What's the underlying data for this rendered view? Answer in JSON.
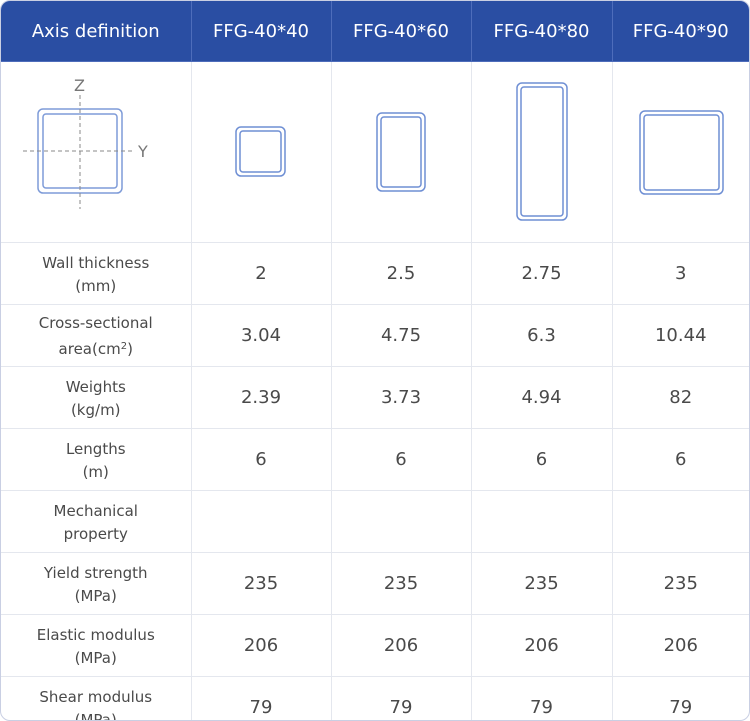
{
  "header": {
    "axis_label": "Axis definition",
    "models": [
      "FFG-40*40",
      "FFG-40*60",
      "FFG-40*80",
      "FFG-40*90"
    ]
  },
  "axis_diagram": {
    "z_label": "Z",
    "y_label": "Y"
  },
  "rows": [
    {
      "label1": "Wall thickness",
      "label2": "(mm)",
      "values": [
        "2",
        "2.5",
        "2.75",
        "3"
      ]
    },
    {
      "label1": "Cross-sectional",
      "label2_pre": "area(cm",
      "label2_sup": "2",
      "label2_post": ")",
      "values": [
        "3.04",
        "4.75",
        "6.3",
        "10.44"
      ]
    },
    {
      "label1": "Weights",
      "label2": "(kg/m)",
      "values": [
        "2.39",
        "3.73",
        "4.94",
        "82"
      ]
    },
    {
      "label1": "Lengths",
      "label2": "(m)",
      "values": [
        "6",
        "6",
        "6",
        "6"
      ]
    },
    {
      "label1": "Mechanical",
      "label2": "property",
      "values": [
        "",
        "",
        "",
        ""
      ]
    },
    {
      "label1": "Yield strength",
      "label2": "(MPa)",
      "values": [
        "235",
        "235",
        "235",
        "235"
      ]
    },
    {
      "label1": "Elastic modulus",
      "label2": "(MPa)",
      "values": [
        "206",
        "206",
        "206",
        "206"
      ]
    },
    {
      "label1": "Shear modulus",
      "label2": "(MPa)",
      "values": [
        "79",
        "79",
        "79",
        "79"
      ]
    }
  ],
  "colors": {
    "header_bg": "#2a4ea3",
    "outline": "#6f8fd4"
  }
}
